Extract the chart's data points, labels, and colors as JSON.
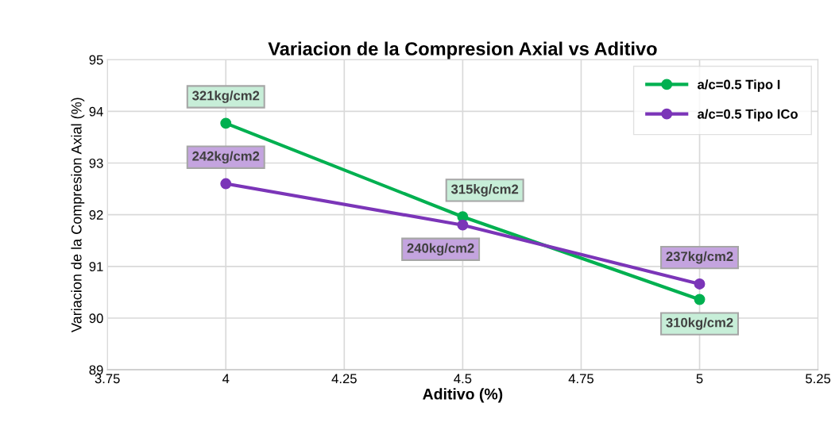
{
  "chart_data": {
    "type": "line",
    "title": "Variacion de la Compresion Axial vs Aditivo",
    "xlabel": "Aditivo (%)",
    "ylabel": "Variacion de la Compresion Axial (%)",
    "x": [
      4,
      4.5,
      5
    ],
    "series": [
      {
        "name": "a/c=0.5 Tipo I",
        "color": "#00b050",
        "values": [
          93.77,
          91.96,
          90.36
        ]
      },
      {
        "name": "a/c=0.5 Tipo ICo",
        "color": "#7b35b8",
        "values": [
          92.6,
          91.8,
          90.66
        ]
      }
    ],
    "annotations": [
      {
        "text": "321kg/cm2",
        "x": 4,
        "y": 93.77
      },
      {
        "text": "242kg/cm2",
        "x": 4,
        "y": 92.6
      },
      {
        "text": "315kg/cm2",
        "x": 4.5,
        "y": 91.96
      },
      {
        "text": "240kg/cm2",
        "x": 4.5,
        "y": 91.8
      },
      {
        "text": "310kg/cm2",
        "x": 5,
        "y": 90.36
      },
      {
        "text": "237kg/cm2",
        "x": 5,
        "y": 90.66
      }
    ],
    "xlim": [
      3.75,
      5.25
    ],
    "xticks": [
      3.75,
      4,
      4.25,
      4.5,
      4.75,
      5,
      5.25
    ],
    "ylim": [
      89,
      95
    ],
    "yticks": [
      89,
      90,
      91,
      92,
      93,
      94,
      95
    ],
    "grid": true,
    "legend": "top right",
    "marker": "circle",
    "line_style": "solid"
  }
}
